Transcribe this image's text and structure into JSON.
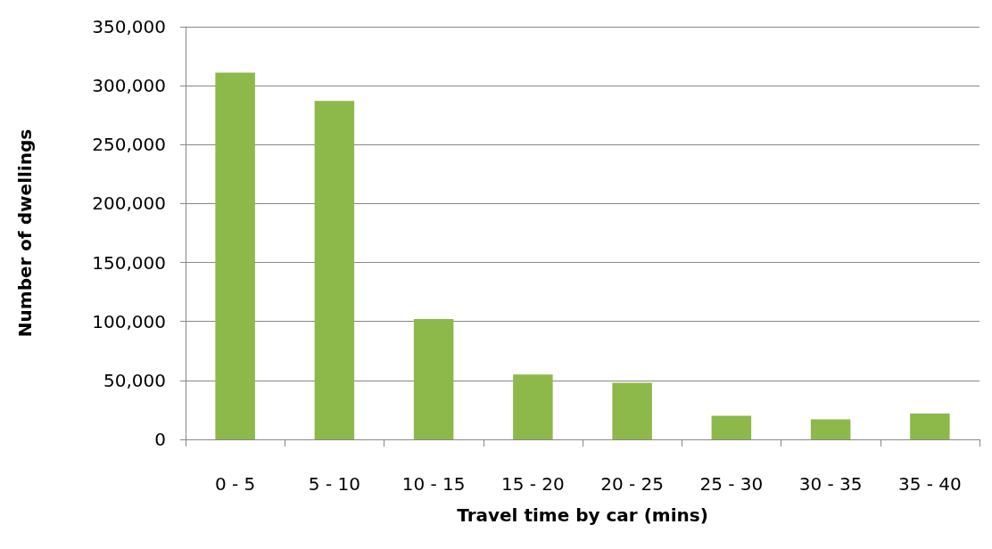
{
  "chart_data": {
    "type": "bar",
    "xlabel": "Travel time by car (mins)",
    "ylabel": "Number of dwellings",
    "categories": [
      "0 - 5",
      "5 - 10",
      "10 - 15",
      "15 - 20",
      "20 - 25",
      "25 - 30",
      "30 - 35",
      "35 - 40"
    ],
    "values": [
      311000,
      287000,
      102000,
      55000,
      48000,
      20000,
      17000,
      22000
    ],
    "color": "#8db84a",
    "ylim": [
      0,
      350000
    ],
    "yticks": [
      0,
      {
        "value": 50000,
        "label": "50,000"
      },
      {
        "value": 100000,
        "label": "100,000"
      },
      {
        "value": 150000,
        "label": "150,000"
      },
      {
        "value": 200000,
        "label": "200,000"
      },
      {
        "value": 250000,
        "label": "250,000"
      },
      {
        "value": 300000,
        "label": "300,000"
      },
      {
        "value": 350000,
        "label": "350,000"
      }
    ],
    "grid": "y"
  }
}
